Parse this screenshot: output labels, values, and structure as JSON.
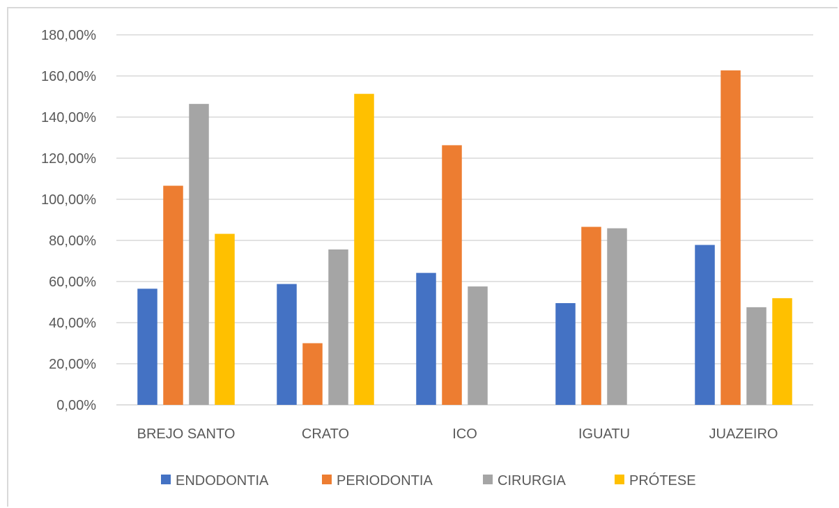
{
  "chart_data": {
    "type": "bar",
    "title": "",
    "xlabel": "",
    "ylabel": "",
    "categories": [
      "BREJO SANTO",
      "CRATO",
      "ICO",
      "IGUATU",
      "JUAZEIRO"
    ],
    "series": [
      {
        "name": "ENDODONTIA",
        "color": "#4472c4",
        "values": [
          56.5,
          58.8,
          64.2,
          49.5,
          77.8
        ]
      },
      {
        "name": "PERIODONTIA",
        "color": "#ed7d31",
        "values": [
          106.6,
          30.0,
          126.3,
          86.6,
          162.7
        ]
      },
      {
        "name": "CIRURGIA",
        "color": "#a5a5a5",
        "values": [
          146.4,
          75.6,
          57.6,
          85.9,
          47.5
        ]
      },
      {
        "name": "PRÓTESE",
        "color": "#ffc000",
        "values": [
          83.2,
          151.3,
          null,
          null,
          51.9
        ]
      }
    ],
    "ylim": [
      0,
      180
    ],
    "yticks": [
      "0,00%",
      "20,00%",
      "40,00%",
      "60,00%",
      "80,00%",
      "100,00%",
      "120,00%",
      "140,00%",
      "160,00%",
      "180,00%"
    ],
    "ytick_values": [
      0,
      20,
      40,
      60,
      80,
      100,
      120,
      140,
      160,
      180
    ],
    "grid": true,
    "legend": "bottom",
    "gridline_color": "#d9d9d9"
  }
}
